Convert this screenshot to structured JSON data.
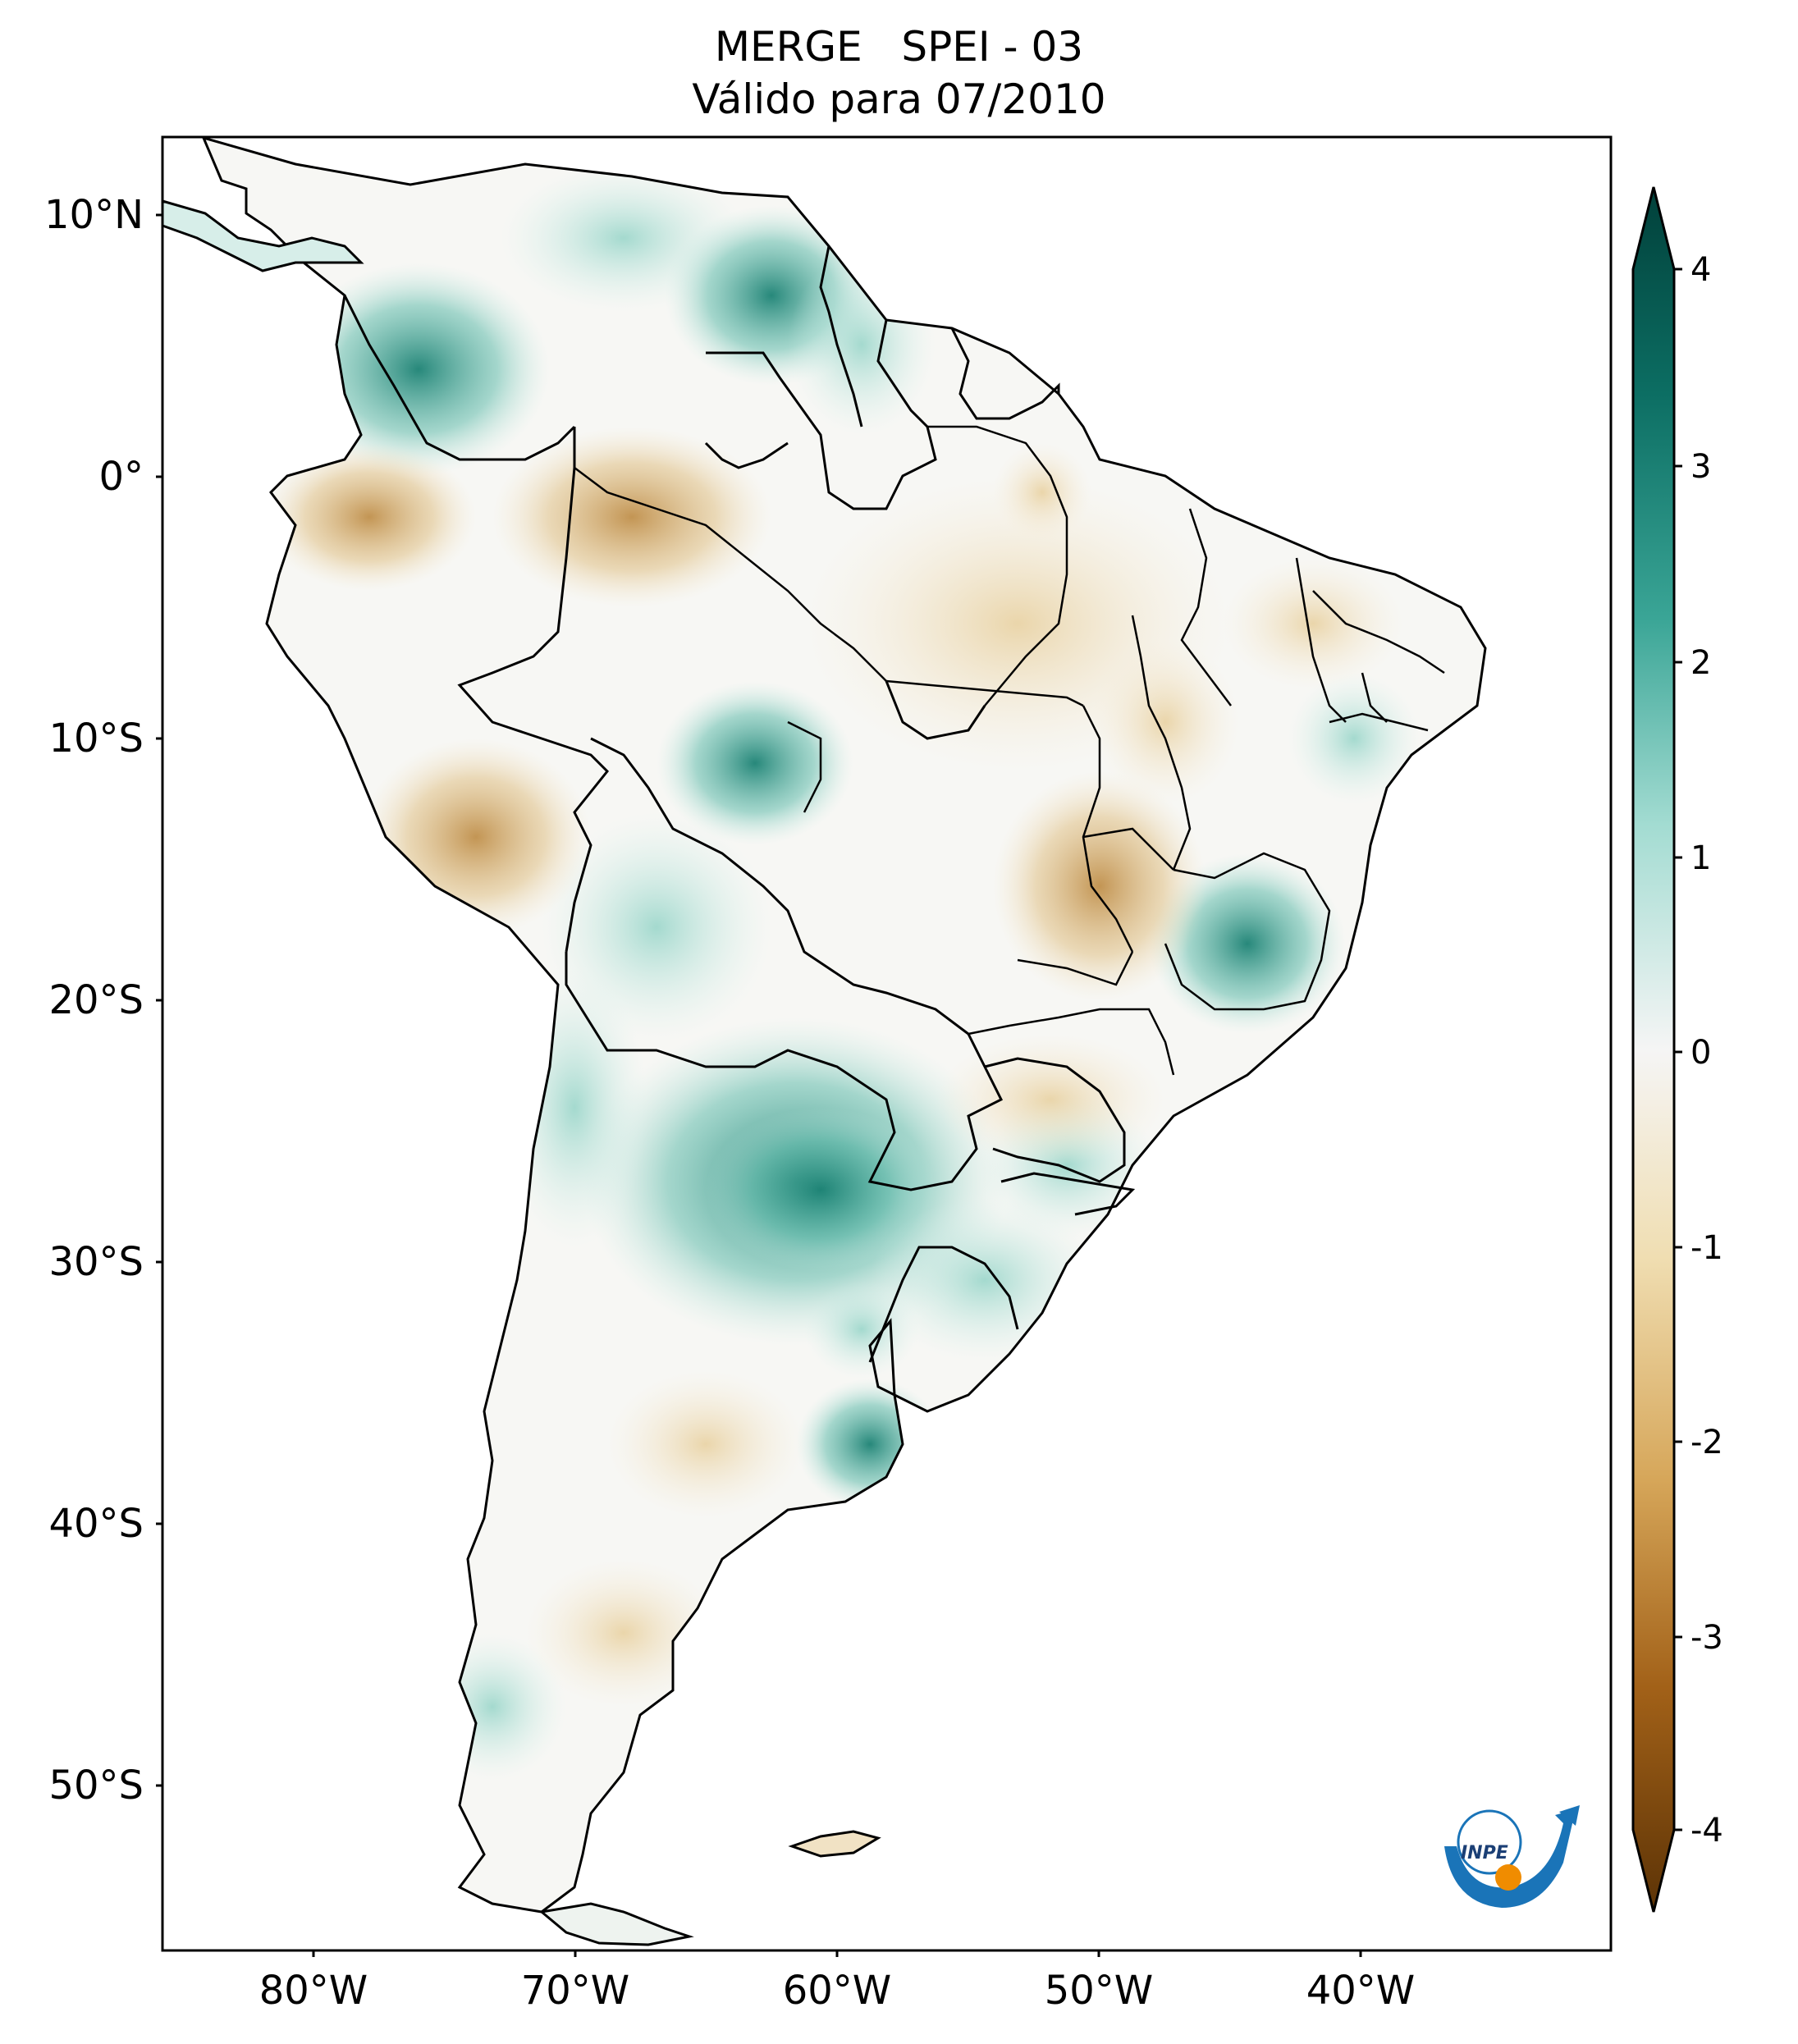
{
  "title": {
    "line1": "MERGE   SPEI - 03",
    "line2": "Válido para 07/2010"
  },
  "axes": {
    "lat_ticks": [
      "10°N",
      "0°",
      "10°S",
      "20°S",
      "30°S",
      "40°S",
      "50°S"
    ],
    "lon_ticks": [
      "80°W",
      "70°W",
      "60°W",
      "50°W",
      "40°W"
    ]
  },
  "colorbar": {
    "ticks": [
      "4",
      "3",
      "2",
      "1",
      "0",
      "-1",
      "-2",
      "-3",
      "-4"
    ],
    "dry_color": "#543005",
    "mid_color": "#f5f5f5",
    "wet_color": "#003c30"
  },
  "logo": {
    "text": "INPE"
  }
}
